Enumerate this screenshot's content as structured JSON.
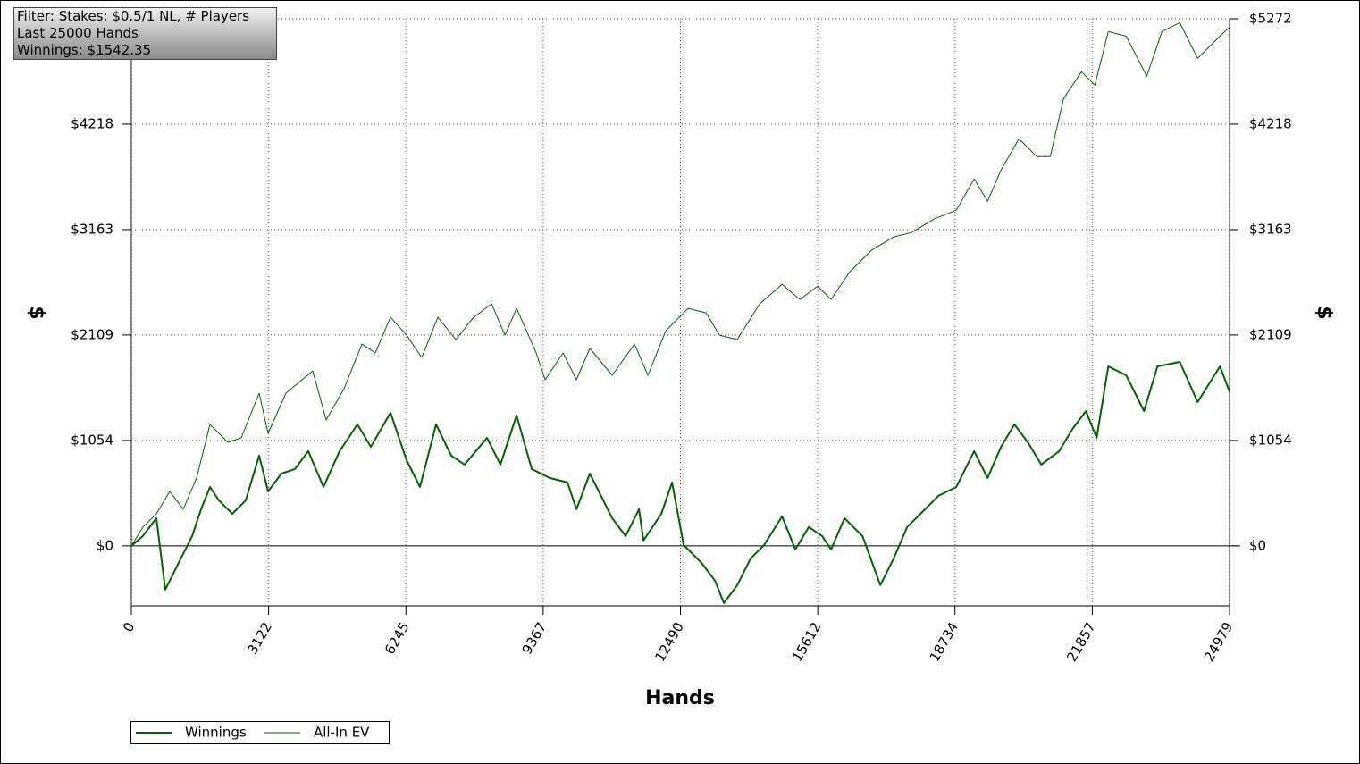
{
  "chart_data": {
    "type": "line",
    "x_label": "Hands",
    "y_label": "$",
    "annotations": [
      "Filter: Stakes: $0.5/1 NL, # Players",
      "Last 25000 Hands",
      "Winnings: $1542.35"
    ],
    "xlim": [
      0,
      24979
    ],
    "xticks": [
      0,
      3122,
      6245,
      9367,
      12490,
      15612,
      18734,
      21857,
      24979
    ],
    "ylim": [
      -600,
      5272
    ],
    "yticks": [
      {
        "value": 0,
        "label": "$0"
      },
      {
        "value": 1054,
        "label": "$1054"
      },
      {
        "value": 2109,
        "label": "$2109"
      },
      {
        "value": 3163,
        "label": "$3163"
      },
      {
        "value": 4218,
        "label": "$4218"
      },
      {
        "value": 5272,
        "label": "$5272"
      }
    ],
    "grid": true,
    "legend": "bottom-left",
    "series": [
      {
        "name": "Winnings",
        "color": "#006400",
        "x": [
          0,
          264,
          569,
          772,
          976,
          1179,
          1382,
          1585,
          1789,
          1992,
          2297,
          2601,
          2906,
          3109,
          3414,
          3719,
          4024,
          4369,
          4735,
          5142,
          5447,
          5894,
          6260,
          6565,
          6931,
          7277,
          7582,
          8090,
          8395,
          8761,
          9107,
          9514,
          9920,
          10124,
          10428,
          10937,
          11242,
          11547,
          11648,
          12055,
          12299,
          12563,
          12970,
          13275,
          13478,
          13783,
          14088,
          14393,
          14800,
          15104,
          15409,
          15714,
          15917,
          16222,
          16629,
          17036,
          17341,
          17646,
          17951,
          18358,
          18764,
          19171,
          19476,
          19781,
          20086,
          20391,
          20696,
          21103,
          21407,
          21712,
          21956,
          22221,
          22628,
          23034,
          23339,
          23847,
          24254,
          24762,
          24979
        ],
        "values": [
          0,
          100,
          277,
          -438,
          -259,
          -80,
          98,
          366,
          589,
          455,
          321,
          455,
          902,
          545,
          723,
          768,
          947,
          589,
          947,
          1214,
          991,
          1331,
          857,
          589,
          1214,
          902,
          813,
          1080,
          813,
          1304,
          768,
          679,
          634,
          366,
          723,
          277,
          98,
          366,
          54,
          321,
          634,
          9,
          -170,
          -348,
          -572,
          -393,
          -125,
          9,
          295,
          -36,
          188,
          98,
          -36,
          277,
          98,
          -393,
          -125,
          188,
          321,
          500,
          589,
          947,
          679,
          991,
          1214,
          1036,
          813,
          947,
          1170,
          1348,
          1080,
          1795,
          1706,
          1348,
          1795,
          1840,
          1438,
          1795,
          1542
        ]
      },
      {
        "name": "All-In EV",
        "color": "#006400",
        "x": [
          0,
          264,
          569,
          874,
          1179,
          1484,
          1789,
          2195,
          2500,
          2906,
          3109,
          3516,
          4126,
          4430,
          4837,
          5243,
          5548,
          5894,
          6260,
          6606,
          6972,
          7379,
          7785,
          8192,
          8497,
          8761,
          9209,
          9412,
          9819,
          10124,
          10428,
          10937,
          11445,
          11750,
          12157,
          12665,
          13072,
          13377,
          13783,
          14291,
          14800,
          15206,
          15612,
          15917,
          16324,
          16832,
          17341,
          17748,
          18256,
          18764,
          19171,
          19476,
          19781,
          20188,
          20595,
          20900,
          21204,
          21611,
          21916,
          22221,
          22628,
          23096,
          23441,
          23847,
          24254,
          24762,
          24979
        ],
        "values": [
          0,
          188,
          321,
          545,
          366,
          679,
          1214,
          1036,
          1080,
          1527,
          1125,
          1527,
          1750,
          1259,
          1572,
          2018,
          1929,
          2286,
          2107,
          1884,
          2286,
          2063,
          2286,
          2420,
          2107,
          2375,
          1929,
          1661,
          1929,
          1661,
          1974,
          1706,
          2018,
          1706,
          2152,
          2375,
          2331,
          2107,
          2063,
          2420,
          2616,
          2465,
          2599,
          2465,
          2733,
          2956,
          3090,
          3134,
          3268,
          3358,
          3670,
          3447,
          3760,
          4072,
          3893,
          3893,
          4474,
          4742,
          4608,
          5144,
          5099,
          4697,
          5144,
          5233,
          4876,
          5099,
          5188
        ]
      }
    ]
  }
}
